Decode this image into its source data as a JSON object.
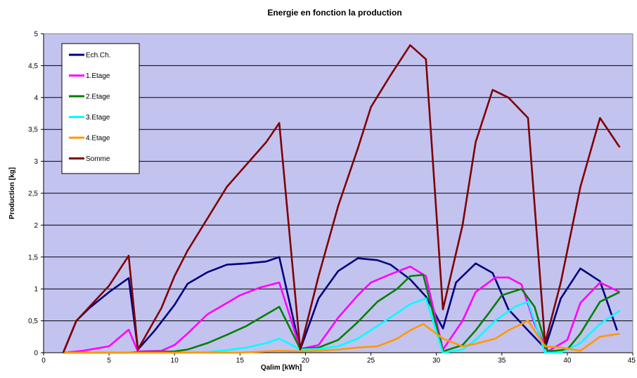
{
  "chart_data": {
    "type": "line",
    "title": "Energie en fonction la production",
    "xlabel": "Qalim [kWh]",
    "ylabel": "Production [kg]",
    "xlim": [
      0,
      45
    ],
    "ylim": [
      0,
      5
    ],
    "x_ticks": [
      "0",
      "5",
      "10",
      "15",
      "20",
      "25",
      "30",
      "35",
      "40",
      "45"
    ],
    "y_ticks": [
      "0",
      "0,5",
      "1",
      "1,5",
      "2",
      "2,5",
      "3",
      "3,5",
      "4",
      "4,5",
      "5"
    ],
    "grid": "horizontal",
    "legend_position": "top-left",
    "plot_background": "#C3C3F0",
    "series": [
      {
        "name": "Ech.Ch.",
        "color": "#000080",
        "points": [
          [
            1.5,
            0
          ],
          [
            2.5,
            0.5
          ],
          [
            3.5,
            0.7
          ],
          [
            5,
            0.95
          ],
          [
            6.5,
            1.17
          ],
          [
            7.2,
            0.05
          ],
          [
            8.5,
            0.35
          ],
          [
            10,
            0.75
          ],
          [
            11,
            1.08
          ],
          [
            12.5,
            1.26
          ],
          [
            14,
            1.38
          ],
          [
            15.5,
            1.4
          ],
          [
            17,
            1.43
          ],
          [
            18,
            1.5
          ],
          [
            19.6,
            0.05
          ],
          [
            21,
            0.85
          ],
          [
            22.5,
            1.28
          ],
          [
            24,
            1.48
          ],
          [
            25.5,
            1.45
          ],
          [
            26.5,
            1.38
          ],
          [
            28,
            1.15
          ],
          [
            29.2,
            0.88
          ],
          [
            30.5,
            0.38
          ],
          [
            31.5,
            1.1
          ],
          [
            33,
            1.4
          ],
          [
            34.3,
            1.25
          ],
          [
            35.5,
            0.68
          ],
          [
            37,
            0.35
          ],
          [
            38.3,
            0.07
          ],
          [
            39.5,
            0.85
          ],
          [
            41,
            1.32
          ],
          [
            42.5,
            1.12
          ],
          [
            43.8,
            0.35
          ]
        ]
      },
      {
        "name": "1.Etage",
        "color": "#FF00FF",
        "points": [
          [
            1.5,
            0
          ],
          [
            3,
            0.03
          ],
          [
            5,
            0.1
          ],
          [
            6.5,
            0.36
          ],
          [
            7.2,
            0.02
          ],
          [
            9,
            0.03
          ],
          [
            10,
            0.12
          ],
          [
            11,
            0.3
          ],
          [
            12.5,
            0.6
          ],
          [
            14,
            0.78
          ],
          [
            15,
            0.9
          ],
          [
            16.5,
            1.02
          ],
          [
            18,
            1.1
          ],
          [
            19.6,
            0.06
          ],
          [
            21,
            0.12
          ],
          [
            22.5,
            0.55
          ],
          [
            24,
            0.9
          ],
          [
            25,
            1.1
          ],
          [
            26.5,
            1.23
          ],
          [
            28,
            1.35
          ],
          [
            29.2,
            1.2
          ],
          [
            30.5,
            0.05
          ],
          [
            32,
            0.5
          ],
          [
            33,
            0.95
          ],
          [
            34.5,
            1.18
          ],
          [
            35.5,
            1.18
          ],
          [
            36.5,
            1.07
          ],
          [
            37.5,
            0.45
          ],
          [
            38.5,
            0.02
          ],
          [
            40,
            0.2
          ],
          [
            41,
            0.78
          ],
          [
            42.5,
            1.1
          ],
          [
            44,
            0.95
          ]
        ]
      },
      {
        "name": "2.Etage",
        "color": "#008000",
        "points": [
          [
            1.5,
            0
          ],
          [
            5,
            0
          ],
          [
            6.5,
            0
          ],
          [
            7.2,
            0.01
          ],
          [
            10,
            0.02
          ],
          [
            11,
            0.05
          ],
          [
            12.5,
            0.15
          ],
          [
            14,
            0.28
          ],
          [
            15.5,
            0.42
          ],
          [
            17,
            0.6
          ],
          [
            18,
            0.72
          ],
          [
            19.6,
            0.06
          ],
          [
            21,
            0.08
          ],
          [
            22.5,
            0.2
          ],
          [
            24,
            0.48
          ],
          [
            25.5,
            0.8
          ],
          [
            27,
            1.0
          ],
          [
            28,
            1.2
          ],
          [
            29,
            1.22
          ],
          [
            30.5,
            0.02
          ],
          [
            32,
            0.12
          ],
          [
            33,
            0.35
          ],
          [
            34,
            0.62
          ],
          [
            35,
            0.9
          ],
          [
            36.5,
            1.0
          ],
          [
            37.5,
            0.72
          ],
          [
            38.5,
            0.02
          ],
          [
            40,
            0.05
          ],
          [
            41,
            0.3
          ],
          [
            42.5,
            0.8
          ],
          [
            44,
            0.95
          ]
        ]
      },
      {
        "name": "3.Etage",
        "color": "#00FFFF",
        "points": [
          [
            1.5,
            0
          ],
          [
            6.5,
            0
          ],
          [
            7.2,
            0
          ],
          [
            10,
            0
          ],
          [
            12.5,
            0.01
          ],
          [
            14,
            0.04
          ],
          [
            15.5,
            0.08
          ],
          [
            17,
            0.15
          ],
          [
            18,
            0.22
          ],
          [
            19.6,
            0.05
          ],
          [
            21,
            0.06
          ],
          [
            22.5,
            0.1
          ],
          [
            24,
            0.22
          ],
          [
            25.5,
            0.42
          ],
          [
            27,
            0.62
          ],
          [
            28,
            0.76
          ],
          [
            29.2,
            0.85
          ],
          [
            30.5,
            0
          ],
          [
            32,
            0.05
          ],
          [
            33,
            0.2
          ],
          [
            34.5,
            0.5
          ],
          [
            36,
            0.72
          ],
          [
            37,
            0.8
          ],
          [
            38.3,
            0
          ],
          [
            39.5,
            0
          ],
          [
            40,
            0.05
          ],
          [
            41,
            0.15
          ],
          [
            42.5,
            0.45
          ],
          [
            44,
            0.66
          ]
        ]
      },
      {
        "name": "4.Etage",
        "color": "#FF9900",
        "points": [
          [
            1.5,
            0
          ],
          [
            6.5,
            0
          ],
          [
            7.2,
            0
          ],
          [
            10,
            0
          ],
          [
            15,
            0
          ],
          [
            17,
            0.02
          ],
          [
            18,
            0.03
          ],
          [
            19.6,
            0.02
          ],
          [
            21,
            0.03
          ],
          [
            22.5,
            0.05
          ],
          [
            24,
            0.08
          ],
          [
            25.5,
            0.1
          ],
          [
            27,
            0.22
          ],
          [
            28,
            0.35
          ],
          [
            29,
            0.45
          ],
          [
            30.5,
            0.22
          ],
          [
            32,
            0.1
          ],
          [
            33,
            0.14
          ],
          [
            34.5,
            0.22
          ],
          [
            35.5,
            0.35
          ],
          [
            37,
            0.5
          ],
          [
            38.3,
            0.1
          ],
          [
            39.5,
            0.08
          ],
          [
            41,
            0.03
          ],
          [
            42.5,
            0.25
          ],
          [
            44,
            0.3
          ]
        ]
      },
      {
        "name": "Somme",
        "color": "#800000",
        "points": [
          [
            1.5,
            0
          ],
          [
            2.5,
            0.5
          ],
          [
            3.5,
            0.72
          ],
          [
            5,
            1.05
          ],
          [
            6.5,
            1.52
          ],
          [
            7.2,
            0.05
          ],
          [
            9,
            0.7
          ],
          [
            10,
            1.2
          ],
          [
            11,
            1.6
          ],
          [
            12.5,
            2.1
          ],
          [
            14,
            2.6
          ],
          [
            15.5,
            2.95
          ],
          [
            17,
            3.3
          ],
          [
            18,
            3.6
          ],
          [
            19.6,
            0.05
          ],
          [
            21,
            1.2
          ],
          [
            22.5,
            2.3
          ],
          [
            24,
            3.2
          ],
          [
            25,
            3.85
          ],
          [
            26.5,
            4.35
          ],
          [
            28,
            4.82
          ],
          [
            29.2,
            4.6
          ],
          [
            30.5,
            0.68
          ],
          [
            32,
            2.0
          ],
          [
            33,
            3.3
          ],
          [
            34.3,
            4.12
          ],
          [
            35.5,
            4.0
          ],
          [
            37,
            3.68
          ],
          [
            38.3,
            0.15
          ],
          [
            39.5,
            1.1
          ],
          [
            41,
            2.6
          ],
          [
            42.5,
            3.68
          ],
          [
            44,
            3.22
          ]
        ]
      }
    ]
  }
}
